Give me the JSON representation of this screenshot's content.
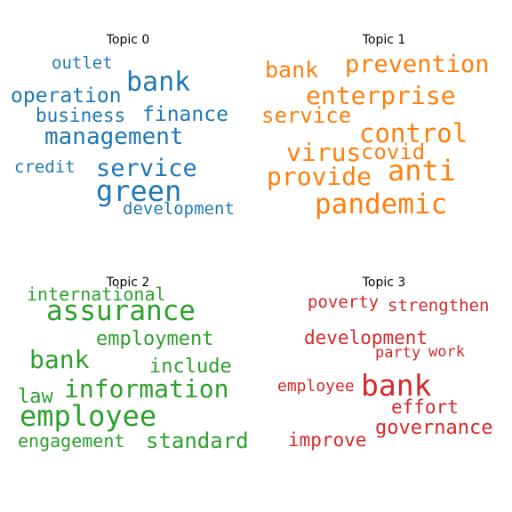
{
  "chart_data": [
    {
      "type": "wordcloud",
      "title": "Topic 0",
      "color": "#1f77b4",
      "words": [
        "outlet",
        "bank",
        "operation",
        "business",
        "finance",
        "management",
        "credit",
        "service",
        "green",
        "development"
      ]
    },
    {
      "type": "wordcloud",
      "title": "Topic 1",
      "color": "#ff7f0e",
      "words": [
        "bank",
        "prevention",
        "enterprise",
        "service",
        "control",
        "virus",
        "covid",
        "anti",
        "provide",
        "pandemic"
      ]
    },
    {
      "type": "wordcloud",
      "title": "Topic 2",
      "color": "#2ca02c",
      "words": [
        "international",
        "assurance",
        "employment",
        "bank",
        "include",
        "law",
        "information",
        "employee",
        "engagement",
        "standard"
      ]
    },
    {
      "type": "wordcloud",
      "title": "Topic 3",
      "color": "#d62728",
      "words": [
        "poverty",
        "strengthen",
        "development",
        "party",
        "work",
        "employee",
        "bank",
        "effort",
        "improve",
        "governance"
      ]
    }
  ]
}
